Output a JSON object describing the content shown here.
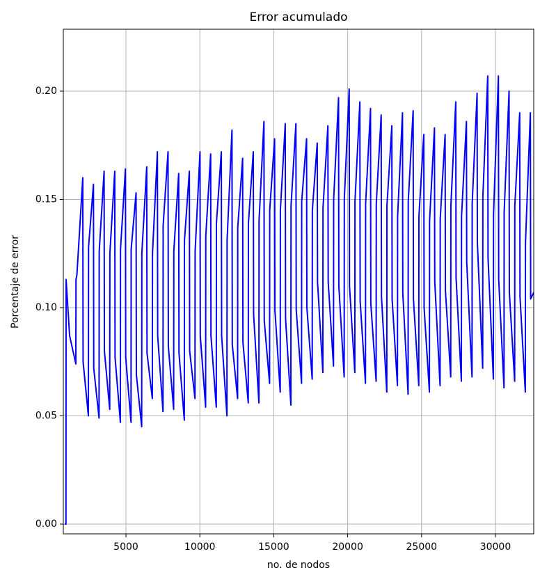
{
  "chart_data": {
    "type": "line",
    "title": "Error acumulado",
    "x_label": "no. de nodos",
    "y_label": "Porcentaje de error",
    "x": [
      860,
      940,
      950,
      1190,
      1610,
      1620,
      1680,
      2080,
      2100,
      2460,
      2470,
      2801,
      2821,
      3181,
      3191,
      3522,
      3542,
      3902,
      3912,
      4243,
      4263,
      4623,
      4633,
      4964,
      4984,
      5344,
      5354,
      5685,
      5705,
      6065,
      6075,
      6406,
      6426,
      6786,
      6796,
      7127,
      7147,
      7507,
      7517,
      7848,
      7868,
      8228,
      8238,
      8569,
      8589,
      8949,
      8959,
      9290,
      9310,
      9670,
      9680,
      10011,
      10031,
      10391,
      10401,
      10732,
      10752,
      11112,
      11122,
      11453,
      11473,
      11833,
      11843,
      12174,
      12194,
      12554,
      12564,
      12895,
      12915,
      13275,
      13285,
      13616,
      13636,
      13996,
      14006,
      14337,
      14357,
      14717,
      14727,
      15058,
      15078,
      15438,
      15448,
      15779,
      15799,
      16159,
      16169,
      16500,
      16520,
      16880,
      16890,
      17221,
      17241,
      17601,
      17611,
      17942,
      17962,
      18322,
      18332,
      18663,
      18683,
      19043,
      19053,
      19384,
      19404,
      19764,
      19774,
      20105,
      20125,
      20485,
      20495,
      20826,
      20846,
      21206,
      21216,
      21547,
      21567,
      21927,
      21937,
      22268,
      22288,
      22648,
      22658,
      22989,
      23009,
      23369,
      23379,
      23710,
      23730,
      24090,
      24100,
      24431,
      24451,
      24811,
      24821,
      25152,
      25172,
      25532,
      25542,
      25873,
      25893,
      26253,
      26263,
      26594,
      26614,
      26974,
      26984,
      27315,
      27335,
      27695,
      27705,
      28036,
      28056,
      28416,
      28426,
      28757,
      28777,
      29137,
      29147,
      29478,
      29498,
      29858,
      29868,
      30199,
      30219,
      30579,
      30589,
      30920,
      30940,
      31300,
      31310,
      31641,
      31661,
      32021,
      32031,
      32362,
      32382,
      32590
    ],
    "series": [
      {
        "color": "#0000ff",
        "values": [
          0,
          0,
          0.113,
          0.087,
          0.074,
          0.113,
          0.115,
          0.16,
          0.075,
          0.05,
          0.128,
          0.157,
          0.072,
          0.049,
          0.126,
          0.163,
          0.08,
          0.053,
          0.125,
          0.163,
          0.077,
          0.047,
          0.127,
          0.164,
          0.077,
          0.047,
          0.127,
          0.153,
          0.069,
          0.045,
          0.125,
          0.165,
          0.079,
          0.058,
          0.125,
          0.172,
          0.087,
          0.052,
          0.138,
          0.172,
          0.082,
          0.053,
          0.126,
          0.162,
          0.079,
          0.048,
          0.131,
          0.163,
          0.08,
          0.058,
          0.126,
          0.172,
          0.087,
          0.054,
          0.133,
          0.171,
          0.087,
          0.054,
          0.139,
          0.172,
          0.087,
          0.05,
          0.131,
          0.182,
          0.083,
          0.058,
          0.137,
          0.169,
          0.084,
          0.056,
          0.139,
          0.172,
          0.097,
          0.056,
          0.14,
          0.186,
          0.094,
          0.065,
          0.145,
          0.178,
          0.099,
          0.061,
          0.145,
          0.185,
          0.095,
          0.055,
          0.147,
          0.185,
          0.099,
          0.065,
          0.149,
          0.178,
          0.1,
          0.067,
          0.145,
          0.176,
          0.112,
          0.07,
          0.146,
          0.184,
          0.112,
          0.073,
          0.15,
          0.197,
          0.11,
          0.068,
          0.15,
          0.201,
          0.11,
          0.07,
          0.149,
          0.195,
          0.103,
          0.065,
          0.148,
          0.192,
          0.102,
          0.066,
          0.148,
          0.189,
          0.105,
          0.061,
          0.147,
          0.184,
          0.104,
          0.064,
          0.142,
          0.19,
          0.107,
          0.06,
          0.149,
          0.191,
          0.104,
          0.064,
          0.142,
          0.18,
          0.1,
          0.061,
          0.14,
          0.183,
          0.112,
          0.064,
          0.141,
          0.18,
          0.108,
          0.068,
          0.147,
          0.195,
          0.114,
          0.066,
          0.142,
          0.186,
          0.121,
          0.068,
          0.148,
          0.199,
          0.13,
          0.072,
          0.151,
          0.207,
          0.123,
          0.067,
          0.143,
          0.207,
          0.113,
          0.063,
          0.144,
          0.2,
          0.107,
          0.066,
          0.147,
          0.19,
          0.105,
          0.061,
          0.13,
          0.19,
          0.104,
          0.107
        ]
      }
    ],
    "xlim": [
      763,
      32590
    ],
    "ylim": [
      -0.0045,
      0.2286
    ],
    "xticks": [
      5000,
      10000,
      15000,
      20000,
      25000,
      30000
    ],
    "yticks": [
      {
        "value": 0,
        "label": "0.00"
      },
      {
        "value": 0.05,
        "label": "0.05"
      },
      {
        "value": 0.1,
        "label": "0.10"
      },
      {
        "value": 0.15,
        "label": "0.15"
      },
      {
        "value": 0.2,
        "label": "0.20"
      }
    ],
    "grid": true
  }
}
